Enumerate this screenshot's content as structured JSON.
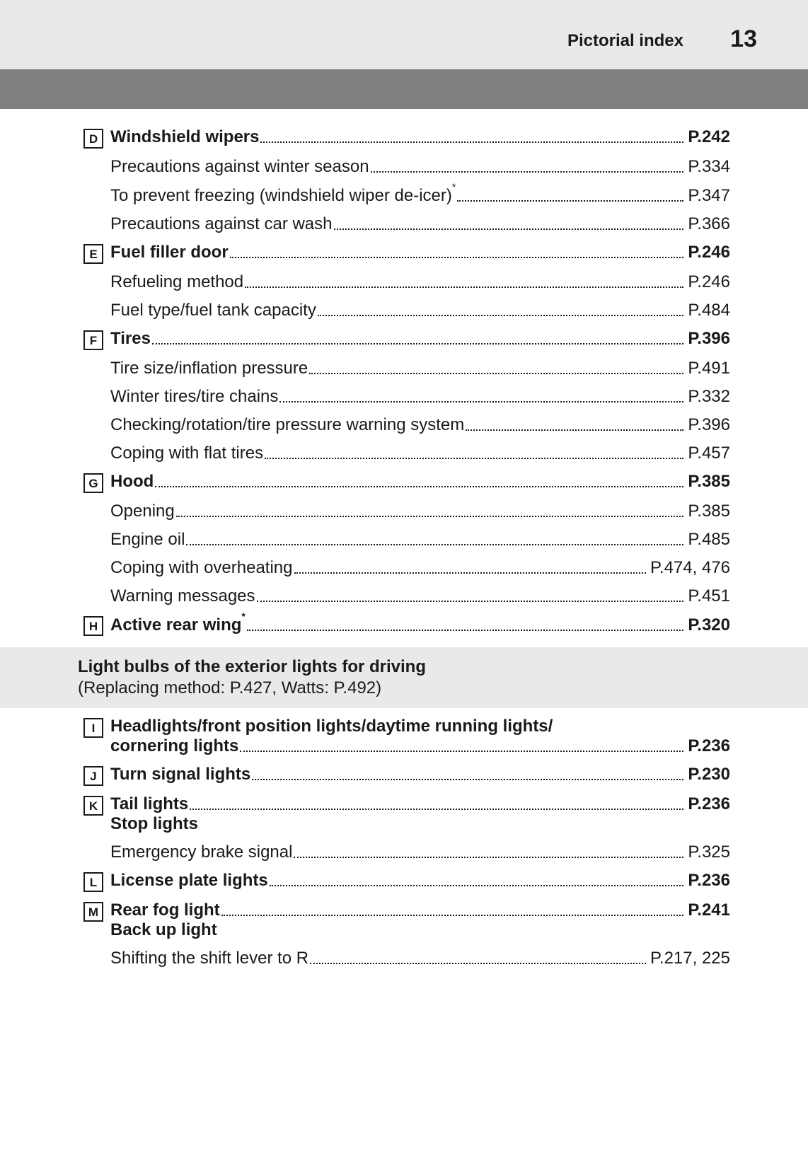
{
  "header": {
    "title": "Pictorial index",
    "page_number": "13"
  },
  "colors": {
    "page_bg": "#ffffff",
    "header_bg": "#e9e9e9",
    "graybar_bg": "#808080",
    "section_bg": "#e9e9e9",
    "text": "#1a1a1a",
    "dot": "#1a1a1a"
  },
  "entries": [
    {
      "marker": "D",
      "lines": [
        {
          "label": "Windshield wipers",
          "page": "P.242",
          "bold": true
        },
        {
          "label": "Precautions against winter season",
          "page": "P.334",
          "bold": false
        },
        {
          "label": "To prevent freezing (windshield wiper de-icer)",
          "sup": "*",
          "page": "P.347",
          "bold": false
        },
        {
          "label": "Precautions against car wash",
          "page": "P.366",
          "bold": false
        }
      ]
    },
    {
      "marker": "E",
      "lines": [
        {
          "label": "Fuel filler door",
          "page": "P.246",
          "bold": true
        },
        {
          "label": "Refueling method",
          "page": "P.246",
          "bold": false
        },
        {
          "label": "Fuel type/fuel tank capacity",
          "page": "P.484",
          "bold": false
        }
      ]
    },
    {
      "marker": "F",
      "lines": [
        {
          "label": "Tires",
          "page": "P.396",
          "bold": true
        },
        {
          "label": "Tire size/inflation pressure",
          "page": "P.491",
          "bold": false
        },
        {
          "label": "Winter tires/tire chains",
          "page": "P.332",
          "bold": false
        },
        {
          "label": "Checking/rotation/tire pressure warning system",
          "page": "P.396",
          "bold": false
        },
        {
          "label": "Coping with flat tires",
          "page": "P.457",
          "bold": false
        }
      ]
    },
    {
      "marker": "G",
      "lines": [
        {
          "label": "Hood",
          "page": "P.385",
          "bold": true
        },
        {
          "label": "Opening",
          "page": "P.385",
          "bold": false
        },
        {
          "label": "Engine oil",
          "page": "P.485",
          "bold": false
        },
        {
          "label": "Coping with overheating",
          "page": "P.474, 476",
          "bold": false
        },
        {
          "label": "Warning messages",
          "page": "P.451",
          "bold": false
        }
      ]
    },
    {
      "marker": "H",
      "lines": [
        {
          "label": "Active rear wing",
          "sup": "*",
          "page": "P.320",
          "bold": true
        }
      ]
    }
  ],
  "section": {
    "title": "Light bulbs of the exterior lights for driving",
    "subtitle": "(Replacing method: P.427, Watts: P.492)"
  },
  "entries2": [
    {
      "marker": "I",
      "lines": [
        {
          "label": "Headlights/front position lights/daytime running lights/\ncornering lights",
          "page": "P.236",
          "bold": true,
          "multiline": true
        }
      ]
    },
    {
      "marker": "J",
      "lines": [
        {
          "label": "Turn signal lights",
          "page": "P.230",
          "bold": true
        }
      ]
    },
    {
      "marker": "K",
      "lines": [
        {
          "label": "Tail lights",
          "page": "P.236",
          "bold": true,
          "sublabel": "Stop lights"
        },
        {
          "label": "Emergency brake signal",
          "page": "P.325",
          "bold": false
        }
      ]
    },
    {
      "marker": "L",
      "lines": [
        {
          "label": "License plate lights",
          "page": "P.236",
          "bold": true
        }
      ]
    },
    {
      "marker": "M",
      "lines": [
        {
          "label": "Rear fog light",
          "page": "P.241",
          "bold": true,
          "sublabel": "Back up light"
        },
        {
          "label": "Shifting the shift lever to R",
          "page": "P.217, 225",
          "bold": false
        }
      ]
    }
  ]
}
